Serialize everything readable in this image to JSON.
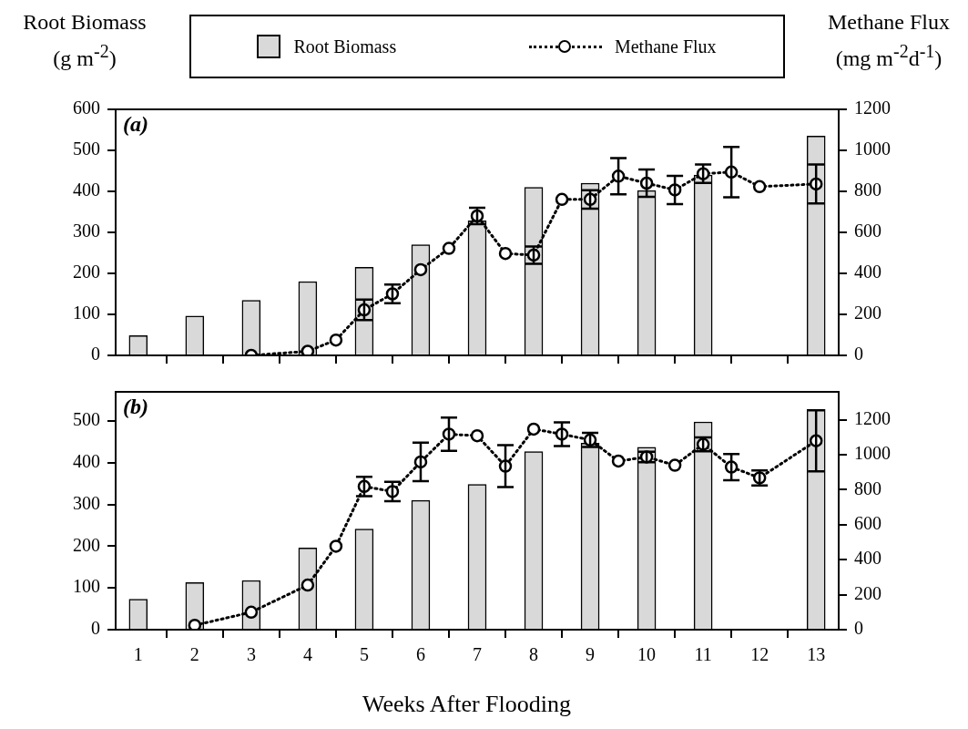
{
  "chart_data": [
    {
      "type": "bar",
      "ylabel": "Root Biomass (g m$^{-2}$)",
      "y2label": "Methane Flux (mg m$^{-2}$d$^{-1}$)",
      "legend": "top",
      "annotations": [
        "(a)"
      ],
      "tick_labels": "y",
      "grid": false,
      "marker": "circle",
      "line_style": "dotted",
      "xlim": [
        0.6,
        13.4
      ],
      "xticks": [
        1,
        2,
        3,
        4,
        5,
        6,
        7,
        8,
        9,
        10,
        11,
        12,
        13
      ],
      "ylim": [
        0,
        600
      ],
      "yticks": [
        0,
        100,
        200,
        300,
        400,
        500,
        600
      ],
      "y2lim": [
        0,
        1200
      ],
      "y2ticks": [
        0,
        200,
        400,
        600,
        800,
        1000,
        1200
      ],
      "series": [
        {
          "name": "Root Biomass",
          "color": "#d9d9d9",
          "x": [
            1,
            2,
            3,
            4,
            5,
            6,
            7,
            8,
            9,
            10,
            11,
            13
          ],
          "values": [
            48,
            96,
            134,
            180,
            215,
            270,
            328,
            410,
            420,
            402,
            440,
            535
          ]
        },
        {
          "name": "Methane Flux",
          "type": "line",
          "axis": "y2",
          "color": "#000000",
          "x": [
            3,
            4,
            4.5,
            5,
            5.5,
            6,
            6.5,
            7,
            7.5,
            8,
            8.5,
            9,
            9.5,
            10,
            10.5,
            11,
            11.5,
            12,
            13
          ],
          "values": [
            0,
            20,
            75,
            222,
            300,
            418,
            522,
            680,
            497,
            489,
            761,
            761,
            874,
            840,
            807,
            886,
            894,
            823,
            836
          ],
          "errors": [
            null,
            null,
            null,
            50,
            46,
            null,
            null,
            40,
            null,
            42,
            null,
            45,
            88,
            67,
            69,
            45,
            123,
            null,
            95
          ]
        }
      ]
    },
    {
      "type": "bar",
      "xlabel": "Weeks After Flooding",
      "annotations": [
        "(b)"
      ],
      "grid": false,
      "marker": "circle",
      "line_style": "dotted",
      "xlim": [
        0.6,
        13.4
      ],
      "xticks": [
        1,
        2,
        3,
        4,
        5,
        6,
        7,
        8,
        9,
        10,
        11,
        12,
        13
      ],
      "ylim": [
        0,
        570
      ],
      "yticks": [
        0,
        100,
        200,
        300,
        400,
        500
      ],
      "y2lim": [
        0,
        1360
      ],
      "y2ticks": [
        0,
        200,
        400,
        600,
        800,
        1000,
        1200
      ],
      "series": [
        {
          "color": "#d9d9d9",
          "x": [
            1,
            2,
            3,
            4,
            5,
            6,
            7,
            8,
            9,
            10,
            11,
            13
          ],
          "values": [
            73,
            113,
            118,
            196,
            241,
            310,
            348,
            427,
            447,
            437,
            498,
            528
          ]
        },
        {
          "type": "line",
          "axis": "y2",
          "color": "#000000",
          "x": [
            2,
            3,
            4,
            4.5,
            5,
            5.5,
            6,
            6.5,
            7,
            7.5,
            8,
            8.5,
            9,
            9.5,
            10,
            10.5,
            11,
            11.5,
            12,
            13
          ],
          "values": [
            25,
            100,
            255,
            477,
            819,
            790,
            959,
            1118,
            1109,
            935,
            1147,
            1118,
            1085,
            964,
            988,
            940,
            1060,
            930,
            868,
            1080
          ],
          "errors": [
            null,
            null,
            null,
            null,
            55,
            55,
            110,
            95,
            null,
            120,
            null,
            68,
            40,
            null,
            30,
            null,
            40,
            75,
            43,
            175
          ]
        }
      ]
    }
  ]
}
